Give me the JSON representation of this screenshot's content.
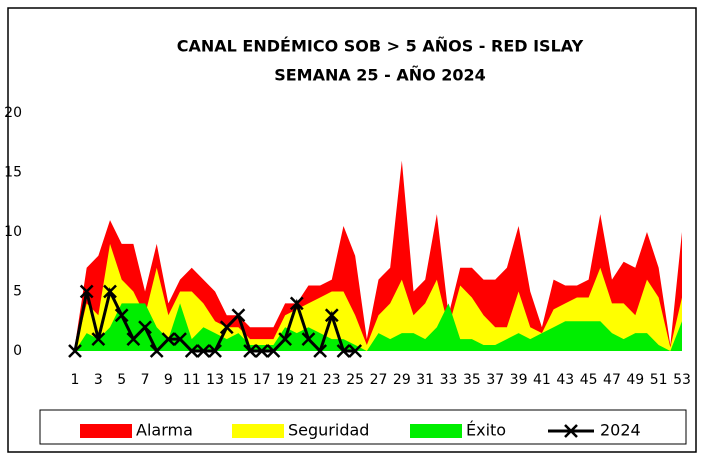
{
  "chart_data": {
    "type": "area",
    "title": "CANAL ENDÉMICO SOB  > 5 AÑOS - RED ISLAY",
    "subtitle": "SEMANA 25 -  AÑO 2024",
    "categories": [
      "1",
      null,
      "3",
      null,
      "5",
      null,
      "7",
      null,
      "9",
      null,
      "11",
      null,
      "13",
      null,
      "15",
      null,
      "17",
      null,
      "19",
      null,
      "21",
      null,
      "23",
      null,
      "25",
      null,
      "27",
      null,
      "29",
      null,
      "31",
      null,
      "33",
      null,
      "35",
      null,
      "37",
      null,
      "39",
      null,
      "41",
      null,
      "43",
      null,
      "45",
      null,
      "47",
      null,
      "49",
      null,
      "51",
      null,
      "53"
    ],
    "ylim": [
      0,
      20
    ],
    "yticks": [
      0,
      5,
      10,
      15,
      20
    ],
    "grid": false,
    "series": [
      {
        "name": "Alarma",
        "color": "#ff0000",
        "kind": "area",
        "values": [
          0.5,
          7,
          8,
          11,
          9,
          9,
          5,
          9,
          4,
          6,
          7,
          6,
          5,
          3,
          3,
          2,
          2,
          2,
          4,
          4,
          5.5,
          5.5,
          6,
          10.5,
          8,
          1,
          6,
          7,
          16,
          5,
          6,
          11.5,
          3,
          7,
          7,
          6,
          6,
          7,
          10.5,
          5,
          2,
          6,
          5.5,
          5.5,
          6,
          11.5,
          6,
          7.5,
          7,
          10,
          7,
          0.5,
          10
        ]
      },
      {
        "name": "Seguridad",
        "color": "#ffff00",
        "kind": "area",
        "values": [
          0,
          4,
          3,
          9,
          6,
          5,
          3,
          7,
          3,
          5,
          5,
          4,
          2.5,
          2,
          2,
          1,
          1,
          1,
          3,
          3.5,
          4,
          4.5,
          5,
          5,
          3,
          0.5,
          3,
          4,
          6,
          3,
          4,
          6,
          2,
          5.5,
          4.5,
          3,
          2,
          2,
          5,
          2,
          1.5,
          3.5,
          4,
          4.5,
          4.5,
          7,
          4,
          4,
          3,
          6,
          4.5,
          0.3,
          4.5
        ]
      },
      {
        "name": "Éxito",
        "color": "#00ee00",
        "kind": "area",
        "values": [
          0,
          1.5,
          1,
          2,
          4,
          4,
          4,
          2,
          1,
          4,
          1,
          2,
          1.5,
          1,
          1.5,
          0.5,
          0.5,
          0.5,
          2,
          1.5,
          2,
          1.5,
          1,
          1,
          0.5,
          0,
          1.5,
          1,
          1.5,
          1.5,
          1,
          2,
          4,
          1,
          1,
          0.5,
          0.5,
          1,
          1.5,
          1,
          1.5,
          2,
          2.5,
          2.5,
          2.5,
          2.5,
          1.5,
          1,
          1.5,
          1.5,
          0.5,
          0,
          2.5
        ]
      },
      {
        "name": "2024",
        "color": "#000000",
        "kind": "line",
        "values": [
          0,
          5,
          1,
          5,
          3,
          1,
          2,
          0,
          1,
          1,
          0,
          0,
          0,
          2,
          3,
          0,
          0,
          0,
          1,
          4,
          1,
          0,
          3,
          0,
          0,
          null,
          null,
          null,
          null,
          null,
          null,
          null,
          null,
          null,
          null,
          null,
          null,
          null,
          null,
          null,
          null,
          null,
          null,
          null,
          null,
          null,
          null,
          null,
          null,
          null,
          null,
          null,
          null
        ]
      }
    ]
  }
}
